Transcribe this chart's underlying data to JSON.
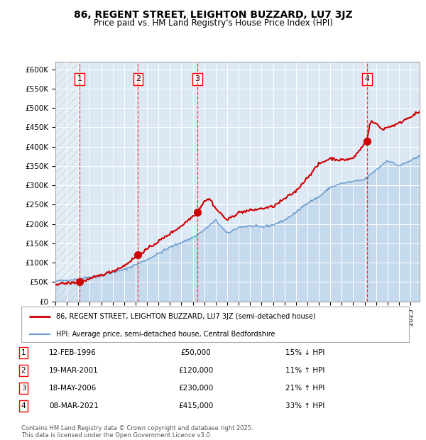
{
  "title": "86, REGENT STREET, LEIGHTON BUZZARD, LU7 3JZ",
  "subtitle": "Price paid vs. HM Land Registry's House Price Index (HPI)",
  "plot_bg_color": "#dce9f5",
  "x_start_year": 1994,
  "x_end_year": 2025.8,
  "y_min": 0,
  "y_max": 620000,
  "y_ticks": [
    0,
    50000,
    100000,
    150000,
    200000,
    250000,
    300000,
    350000,
    400000,
    450000,
    500000,
    550000,
    600000
  ],
  "y_tick_labels": [
    "£0",
    "£50K",
    "£100K",
    "£150K",
    "£200K",
    "£250K",
    "£300K",
    "£350K",
    "£400K",
    "£450K",
    "£500K",
    "£550K",
    "£600K"
  ],
  "sale_color": "#cc0000",
  "hpi_color": "#6699cc",
  "sale_points": [
    {
      "year": 1996.12,
      "price": 50000,
      "label": "1"
    },
    {
      "year": 2001.22,
      "price": 120000,
      "label": "2"
    },
    {
      "year": 2006.38,
      "price": 230000,
      "label": "3"
    },
    {
      "year": 2021.19,
      "price": 415000,
      "label": "4"
    }
  ],
  "vline_years": [
    1996.12,
    2001.22,
    2006.38,
    2021.19
  ],
  "legend_sale_label": "86, REGENT STREET, LEIGHTON BUZZARD, LU7 3JZ (semi-detached house)",
  "legend_hpi_label": "HPI: Average price, semi-detached house, Central Bedfordshire",
  "table_data": [
    {
      "num": "1",
      "date": "12-FEB-1996",
      "price": "£50,000",
      "hpi": "15% ↓ HPI"
    },
    {
      "num": "2",
      "date": "19-MAR-2001",
      "price": "£120,000",
      "hpi": "11% ↑ HPI"
    },
    {
      "num": "3",
      "date": "18-MAY-2006",
      "price": "£230,000",
      "hpi": "21% ↑ HPI"
    },
    {
      "num": "4",
      "date": "08-MAR-2021",
      "price": "£415,000",
      "hpi": "33% ↑ HPI"
    }
  ],
  "footer": "Contains HM Land Registry data © Crown copyright and database right 2025.\nThis data is licensed under the Open Government Licence v3.0.",
  "hpi_waypoints_t": [
    1994,
    1996,
    1998,
    2000,
    2002,
    2004,
    2006,
    2007,
    2008,
    2009,
    2010,
    2011,
    2012,
    2013,
    2014,
    2015,
    2016,
    2017,
    2018,
    2019,
    2020,
    2021,
    2022,
    2023,
    2024,
    2025.8
  ],
  "hpi_waypoints_v": [
    52000,
    58000,
    68000,
    82000,
    108000,
    140000,
    165000,
    185000,
    210000,
    175000,
    192000,
    195000,
    192000,
    198000,
    210000,
    230000,
    255000,
    270000,
    295000,
    305000,
    310000,
    315000,
    340000,
    365000,
    350000,
    375000
  ],
  "sale_waypoints_t": [
    1994,
    1995.5,
    1996.12,
    1997,
    1998,
    1999,
    2000,
    2001.22,
    2002,
    2003,
    2004,
    2005,
    2006.38,
    2007.0,
    2007.5,
    2008,
    2009,
    2010,
    2011,
    2012,
    2013,
    2014,
    2015,
    2016,
    2017,
    2018,
    2019,
    2020,
    2021.19,
    2021.5,
    2022,
    2022.5,
    2023,
    2023.5,
    2024,
    2024.5,
    2025.8
  ],
  "sale_waypoints_v": [
    45000,
    48000,
    50000,
    58000,
    68000,
    78000,
    92000,
    120000,
    135000,
    155000,
    175000,
    195000,
    230000,
    260000,
    265000,
    240000,
    210000,
    230000,
    235000,
    240000,
    245000,
    265000,
    285000,
    320000,
    355000,
    370000,
    365000,
    370000,
    415000,
    465000,
    460000,
    445000,
    450000,
    455000,
    460000,
    470000,
    490000
  ]
}
